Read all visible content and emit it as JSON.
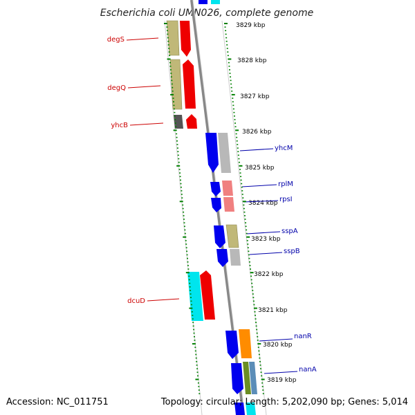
{
  "title": "Escherichia coli UMN026, complete genome",
  "accession": "Accession: NC_011751",
  "topology": "Topology: circular; Length: 5,202,090 bp; Genes: 5,014",
  "colors": {
    "forward_label": "#cc0000",
    "reverse_label": "#0000aa",
    "tick": "#008000",
    "backbone": "#888888"
  },
  "ticks": [
    "3829 kbp",
    "3828 kbp",
    "3827 kbp",
    "3826 kbp",
    "3825 kbp",
    "3824 kbp",
    "3823 kbp",
    "3822 kbp",
    "3821 kbp",
    "3820 kbp",
    "3819 kbp"
  ],
  "genes_left": [
    {
      "name": "degS",
      "color": "#c0b878"
    },
    {
      "name": "degQ",
      "color": "#c0b878"
    },
    {
      "name": "yhcB",
      "color": "#555555"
    },
    {
      "name": "dcuD",
      "color": "#00e5ee"
    }
  ],
  "genes_right": [
    {
      "name": "yhcM",
      "color": "#b8b8b8"
    },
    {
      "name": "rplM",
      "color": "#f08080"
    },
    {
      "name": "rpsI",
      "color": "#f08080"
    },
    {
      "name": "sspA",
      "color": "#c0b878"
    },
    {
      "name": "sspB",
      "color": "#b8b8b8"
    },
    {
      "name": "nanR",
      "color": "#ff8c00"
    },
    {
      "name": "nanA",
      "color": "#6b8e23"
    }
  ]
}
